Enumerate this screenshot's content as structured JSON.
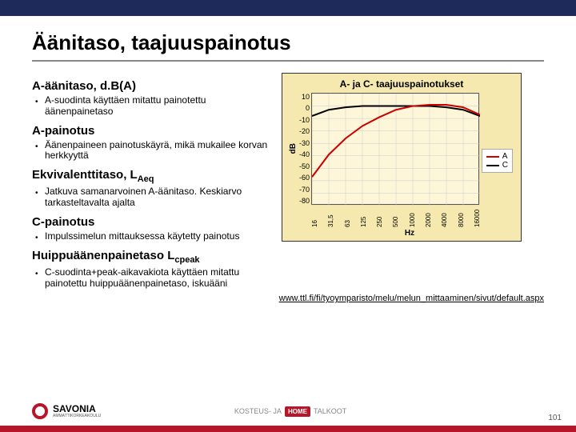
{
  "colors": {
    "top_bar": "#1e2a5a",
    "accent": "#b5172a",
    "chart_bg": "#f5e9af",
    "plot_bg": "#fdf6d8",
    "grid": "#cccccc",
    "curve_a": "#cc0000",
    "curve_c": "#000000"
  },
  "title": "Äänitaso, taajuuspainotus",
  "sections": [
    {
      "heading": "A-äänitaso, d.B(A)",
      "bullet": "A-suodinta käyttäen mitattu painotettu äänenpainetaso"
    },
    {
      "heading": "A-painotus",
      "bullet": "Äänenpaineen painotuskäyrä, mikä mukailee korvan herkkyyttä"
    },
    {
      "heading_html": "Ekvivalenttitaso, L<sub>Aeq</sub>",
      "bullet": "Jatkuva samanarvoinen A-äänitaso. Keskiarvo tarkasteltavalta ajalta"
    },
    {
      "heading": "C-painotus",
      "bullet": "Impulssimelun mittauksessa käytetty painotus"
    },
    {
      "heading_html": "Huippuäänenpainetaso L<sub>cpeak</sub>",
      "bullet": "C-suodinta+peak-aikavakiota käyttäen mitattu painotettu huippuäänenpainetaso, iskuääni"
    }
  ],
  "link": "www.ttl.fi/fi/tyoymparisto/melu/melun_mittaaminen/sivut/default.aspx",
  "chart": {
    "title": "A- ja C- taajuuspainotukset",
    "ylabel": "dB",
    "xlabel": "Hz",
    "yticks": [
      "10",
      "0",
      "-10",
      "-20",
      "-30",
      "-40",
      "-50",
      "-60",
      "-70",
      "-80"
    ],
    "ylim": [
      -80,
      10
    ],
    "xticks": [
      "16",
      "31,5",
      "63",
      "125",
      "250",
      "500",
      "1000",
      "2000",
      "4000",
      "8000",
      "16000"
    ],
    "legend": [
      {
        "label": "A",
        "color": "#cc0000"
      },
      {
        "label": "C",
        "color": "#000000"
      }
    ],
    "series_a": {
      "color": "#cc0000",
      "points_db": [
        -57,
        -39,
        -26,
        -16,
        -9,
        -3,
        0,
        1,
        1,
        -1,
        -7
      ]
    },
    "series_c": {
      "color": "#000000",
      "points_db": [
        -8,
        -3,
        -1,
        0,
        0,
        0,
        0,
        0,
        -1,
        -3,
        -8
      ]
    },
    "line_width": 2
  },
  "footer": {
    "logo_name": "SAVONIA",
    "logo_sub": "AMMATTIKORKEAKOULU",
    "center_left": "KOSTEUS- JA",
    "center_badge": "HOME",
    "center_right": "TALKOOT",
    "page": "101"
  }
}
